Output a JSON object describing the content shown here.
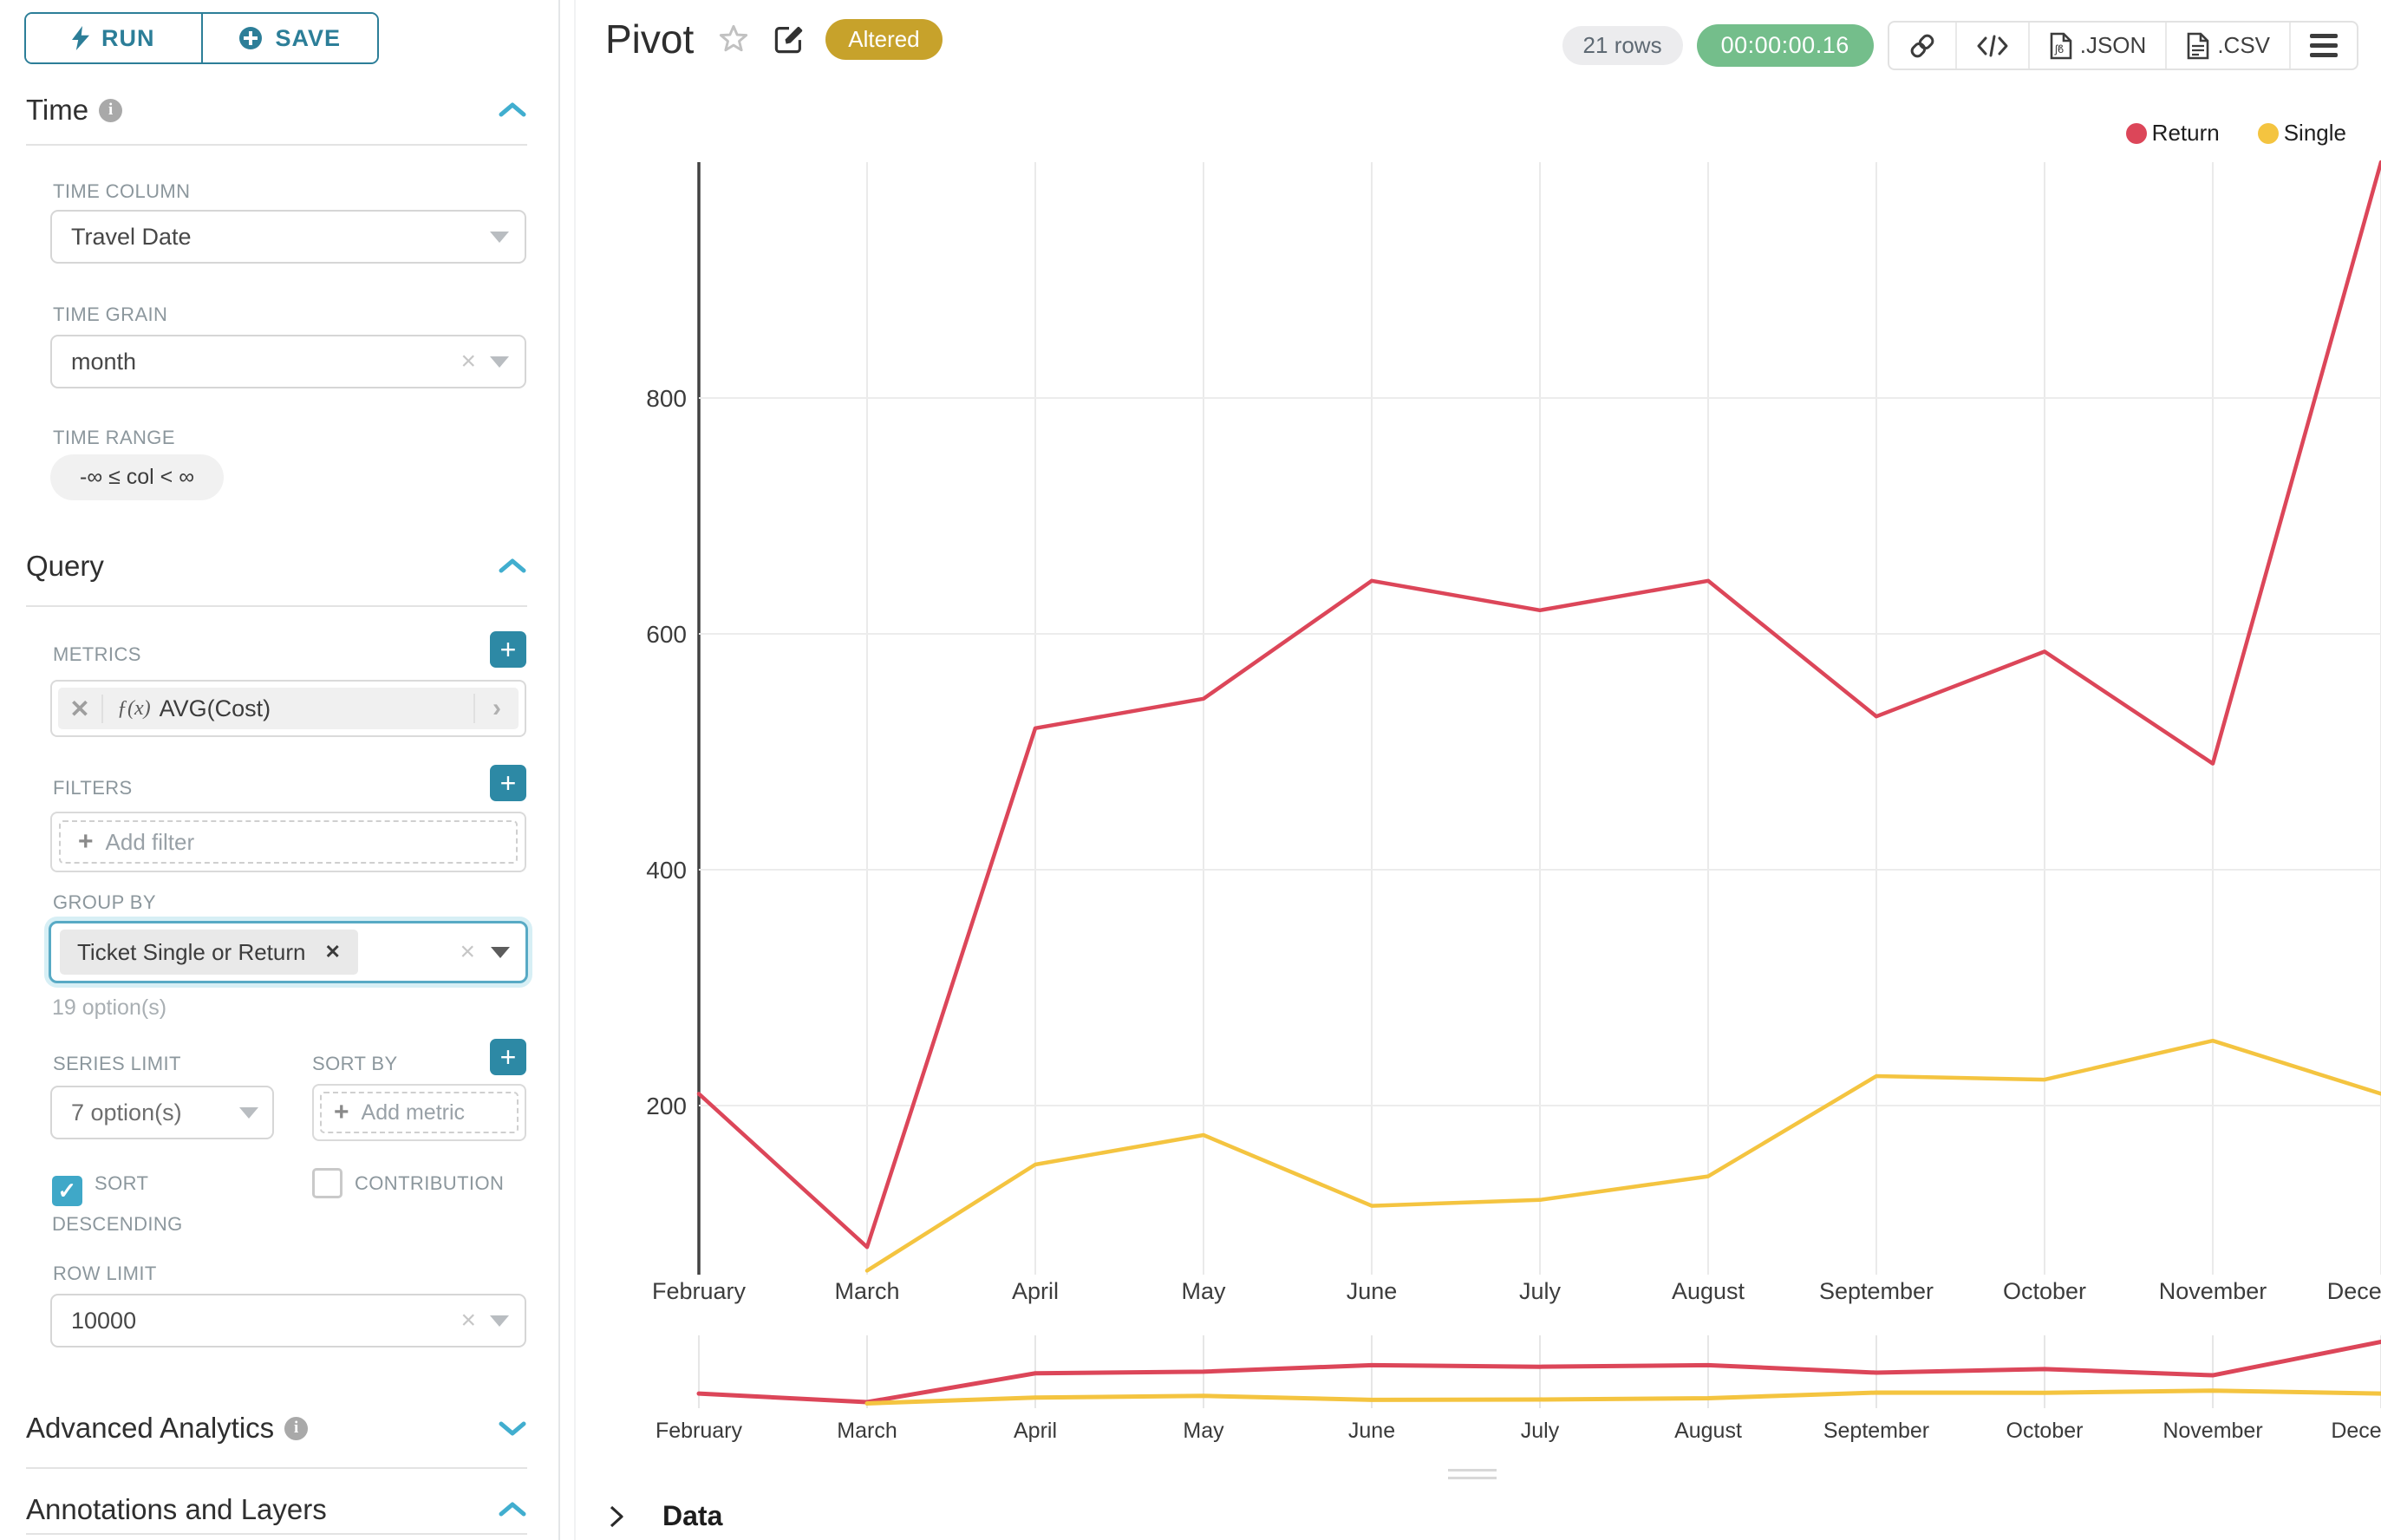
{
  "colors": {
    "accent_dark": "#2c7e98",
    "accent": "#20a7c9",
    "chevron_blue": "#41aecf",
    "return_red": "#dc4659",
    "single_yellow": "#f4c440",
    "timer_green": "#74be8b",
    "altered_gold": "#c7a22b",
    "axis_dark": "#424242",
    "gridline": "#ebebeb"
  },
  "sidebar": {
    "run_label": "RUN",
    "save_label": "SAVE",
    "time": {
      "title": "Time",
      "time_column_label": "TIME COLUMN",
      "time_column_value": "Travel Date",
      "time_grain_label": "TIME GRAIN",
      "time_grain_value": "month",
      "time_range_label": "TIME RANGE",
      "time_range_value": "-∞ ≤ col < ∞"
    },
    "query": {
      "title": "Query",
      "metrics_label": "METRICS",
      "metric_fx": "ƒ(x)",
      "metric_value": "AVG(Cost)",
      "filters_label": "FILTERS",
      "add_filter_label": "Add filter",
      "group_by_label": "GROUP BY",
      "group_by_value": "Ticket Single or Return",
      "group_by_hint": "19 option(s)",
      "series_limit_label": "SERIES LIMIT",
      "series_limit_value": "7 option(s)",
      "sort_by_label": "SORT BY",
      "add_metric_label": "Add metric",
      "sort_descending_label": "SORT DESCENDING",
      "contribution_label": "CONTRIBUTION",
      "row_limit_label": "ROW LIMIT",
      "row_limit_value": "10000"
    },
    "advanced": {
      "title": "Advanced Analytics"
    },
    "annotations": {
      "title": "Annotations and Layers"
    }
  },
  "header": {
    "title": "Pivot",
    "badge": "Altered",
    "row_count": "21 rows",
    "duration": "00:00:00.16",
    "export_json_label": ".JSON",
    "export_csv_label": ".CSV"
  },
  "data_panel": {
    "title": "Data"
  },
  "chart_data": {
    "type": "line",
    "title": "",
    "xlabel": "",
    "ylabel": "",
    "categories": [
      "February",
      "March",
      "April",
      "May",
      "June",
      "July",
      "August",
      "September",
      "October",
      "November",
      "December"
    ],
    "series": [
      {
        "name": "Return",
        "color": "#dc4659",
        "values": [
          210,
          80,
          520,
          545,
          645,
          620,
          645,
          530,
          585,
          490,
          1000
        ]
      },
      {
        "name": "Single",
        "color": "#f4c440",
        "values": [
          null,
          60,
          150,
          175,
          115,
          120,
          140,
          225,
          222,
          255,
          210
        ]
      }
    ],
    "y_ticks": [
      200,
      400,
      600,
      800
    ],
    "ylim": [
      40,
      1020
    ],
    "grid": true,
    "legend_position": "top-right",
    "has_context_brush_chart": true
  }
}
